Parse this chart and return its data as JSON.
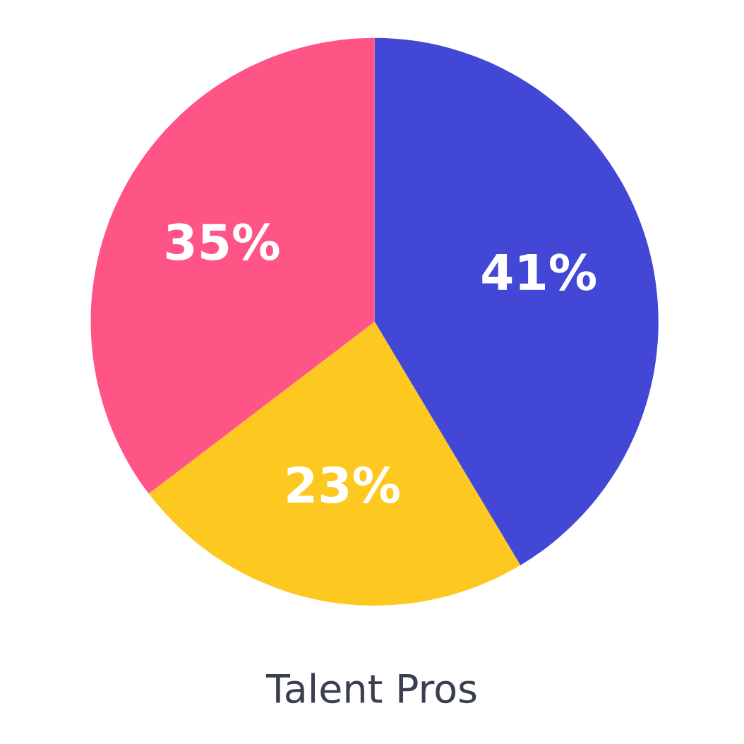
{
  "chart_data": {
    "type": "pie",
    "title": "Talent Pros",
    "categories": [
      null,
      null,
      null
    ],
    "values": [
      41,
      23,
      35
    ],
    "colors": [
      "#4347d6",
      "#fdc81f",
      "#fe5586"
    ],
    "value_labels": [
      "41%",
      "23%",
      "35%"
    ]
  }
}
